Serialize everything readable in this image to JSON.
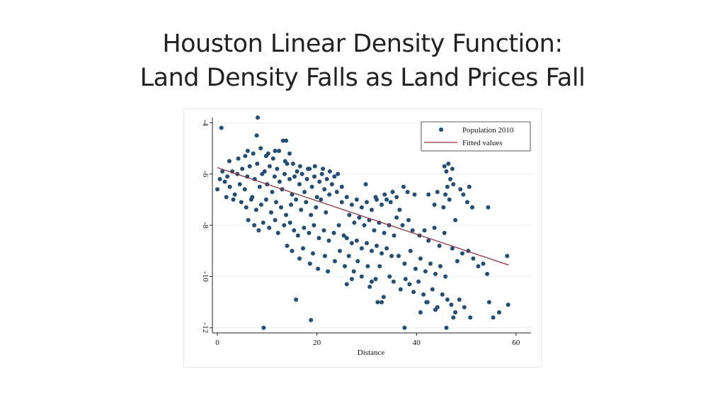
{
  "slide": {
    "title_line1": "Houston Linear Density Function:",
    "title_line2": "Land Density Falls as Land Prices Fall"
  },
  "chart_data": {
    "type": "scatter",
    "title": "",
    "xlabel": "Distance",
    "ylabel": "",
    "xlim": [
      -1,
      63
    ],
    "ylim": [
      -12.2,
      -3.8
    ],
    "xticks": [
      0,
      20,
      40,
      60
    ],
    "yticks": [
      -4,
      -6,
      -8,
      -10,
      -12
    ],
    "grid": "horizontal",
    "legend_position": "top-right",
    "colors": {
      "points": "#1f4e79",
      "fit": "#a0303a",
      "grid": "#e9eef3"
    },
    "series": [
      {
        "name": "Population 2010",
        "type": "scatter",
        "points": [
          [
            0.8,
            -4.2
          ],
          [
            8.1,
            -3.8
          ],
          [
            7.9,
            -4.5
          ],
          [
            13.2,
            -4.7
          ],
          [
            13.8,
            -4.7
          ],
          [
            6.1,
            -5.1
          ],
          [
            11.6,
            -5.1
          ],
          [
            9.8,
            -5.3
          ],
          [
            14.5,
            -5.2
          ],
          [
            0.0,
            -6.6
          ],
          [
            0.5,
            -6.2
          ],
          [
            1.0,
            -5.9
          ],
          [
            1.5,
            -6.3
          ],
          [
            2.0,
            -6.1
          ],
          [
            2.5,
            -6.5
          ],
          [
            3.0,
            -5.9
          ],
          [
            3.5,
            -6.8
          ],
          [
            4.0,
            -6.0
          ],
          [
            4.5,
            -6.4
          ],
          [
            5.0,
            -5.8
          ],
          [
            5.5,
            -6.6
          ],
          [
            6.0,
            -6.1
          ],
          [
            6.5,
            -5.7
          ],
          [
            7.0,
            -6.9
          ],
          [
            7.5,
            -6.2
          ],
          [
            8.0,
            -5.6
          ],
          [
            8.5,
            -6.5
          ],
          [
            9.0,
            -6.0
          ],
          [
            9.5,
            -5.9
          ],
          [
            10.0,
            -6.4
          ],
          [
            10.5,
            -5.7
          ],
          [
            11.0,
            -6.7
          ],
          [
            11.5,
            -6.1
          ],
          [
            12.0,
            -5.8
          ],
          [
            12.5,
            -6.3
          ],
          [
            13.0,
            -6.6
          ],
          [
            13.5,
            -6.0
          ],
          [
            14.0,
            -5.6
          ],
          [
            14.5,
            -6.2
          ],
          [
            15.0,
            -6.8
          ],
          [
            15.5,
            -6.1
          ],
          [
            16.0,
            -5.9
          ],
          [
            16.5,
            -6.4
          ],
          [
            17.0,
            -6.0
          ],
          [
            17.5,
            -6.7
          ],
          [
            18.0,
            -6.2
          ],
          [
            18.5,
            -5.8
          ],
          [
            19.0,
            -6.5
          ],
          [
            19.5,
            -6.1
          ],
          [
            20.0,
            -6.9
          ],
          [
            20.5,
            -6.3
          ],
          [
            21.0,
            -6.0
          ],
          [
            21.5,
            -6.6
          ],
          [
            22.0,
            -6.2
          ],
          [
            22.5,
            -6.8
          ],
          [
            23.0,
            -6.4
          ],
          [
            23.5,
            -6.1
          ],
          [
            24.0,
            -6.7
          ],
          [
            25.0,
            -6.5
          ],
          [
            1.8,
            -6.9
          ],
          [
            3.2,
            -7.0
          ],
          [
            4.8,
            -7.1
          ],
          [
            5.8,
            -7.3
          ],
          [
            6.8,
            -7.0
          ],
          [
            7.8,
            -7.4
          ],
          [
            8.8,
            -7.2
          ],
          [
            9.8,
            -7.0
          ],
          [
            10.8,
            -7.5
          ],
          [
            11.8,
            -7.1
          ],
          [
            12.8,
            -7.3
          ],
          [
            13.8,
            -7.6
          ],
          [
            14.8,
            -7.2
          ],
          [
            15.8,
            -7.0
          ],
          [
            16.8,
            -7.4
          ],
          [
            17.8,
            -7.1
          ],
          [
            18.8,
            -7.6
          ],
          [
            19.8,
            -7.3
          ],
          [
            20.8,
            -7.0
          ],
          [
            21.8,
            -7.5
          ],
          [
            2.4,
            -5.5
          ],
          [
            4.2,
            -5.4
          ],
          [
            5.6,
            -5.3
          ],
          [
            7.2,
            -5.2
          ],
          [
            8.7,
            -5.0
          ],
          [
            10.2,
            -5.2
          ],
          [
            11.2,
            -5.4
          ],
          [
            12.4,
            -5.1
          ],
          [
            13.6,
            -5.5
          ],
          [
            15.2,
            -5.6
          ],
          [
            16.6,
            -5.7
          ],
          [
            18.2,
            -5.8
          ],
          [
            19.6,
            -5.7
          ],
          [
            21.2,
            -5.8
          ],
          [
            22.6,
            -5.9
          ],
          [
            24.2,
            -6.0
          ],
          [
            6.2,
            -7.8
          ],
          [
            7.4,
            -8.0
          ],
          [
            8.3,
            -8.2
          ],
          [
            9.2,
            -7.9
          ],
          [
            10.4,
            -8.1
          ],
          [
            11.6,
            -7.8
          ],
          [
            12.2,
            -8.3
          ],
          [
            13.4,
            -8.0
          ],
          [
            14.6,
            -7.9
          ],
          [
            15.4,
            -8.2
          ],
          [
            16.2,
            -8.4
          ],
          [
            17.4,
            -8.1
          ],
          [
            18.4,
            -8.3
          ],
          [
            19.4,
            -8.0
          ],
          [
            20.4,
            -8.5
          ],
          [
            21.4,
            -8.2
          ],
          [
            22.4,
            -8.6
          ],
          [
            23.4,
            -8.3
          ],
          [
            24.4,
            -8.0
          ],
          [
            25.4,
            -8.4
          ],
          [
            14.0,
            -8.8
          ],
          [
            15.0,
            -9.0
          ],
          [
            16.5,
            -9.3
          ],
          [
            17.2,
            -8.9
          ],
          [
            18.6,
            -9.5
          ],
          [
            19.2,
            -9.1
          ],
          [
            20.2,
            -9.7
          ],
          [
            21.6,
            -9.2
          ],
          [
            22.2,
            -9.8
          ],
          [
            23.6,
            -9.4
          ],
          [
            24.6,
            -9.0
          ],
          [
            25.6,
            -9.6
          ],
          [
            26.4,
            -9.2
          ],
          [
            27.4,
            -9.8
          ],
          [
            28.2,
            -9.4
          ],
          [
            29.0,
            -10.0
          ],
          [
            30.2,
            -9.6
          ],
          [
            31.0,
            -10.2
          ],
          [
            26.0,
            -10.3
          ],
          [
            27.0,
            -10.1
          ],
          [
            25.0,
            -7.1
          ],
          [
            26.0,
            -6.9
          ],
          [
            27.0,
            -7.2
          ],
          [
            28.0,
            -7.0
          ],
          [
            29.0,
            -7.3
          ],
          [
            30.0,
            -7.1
          ],
          [
            31.0,
            -7.4
          ],
          [
            32.0,
            -7.0
          ],
          [
            33.0,
            -7.2
          ],
          [
            34.0,
            -7.0
          ],
          [
            26.5,
            -7.6
          ],
          [
            27.5,
            -7.9
          ],
          [
            28.5,
            -7.7
          ],
          [
            29.5,
            -8.0
          ],
          [
            30.5,
            -7.8
          ],
          [
            31.5,
            -8.2
          ],
          [
            32.5,
            -7.9
          ],
          [
            33.5,
            -8.3
          ],
          [
            34.5,
            -8.0
          ],
          [
            35.5,
            -8.4
          ],
          [
            26.0,
            -8.5
          ],
          [
            27.0,
            -8.7
          ],
          [
            28.0,
            -8.6
          ],
          [
            29.0,
            -8.9
          ],
          [
            30.0,
            -8.7
          ],
          [
            31.0,
            -9.0
          ],
          [
            32.0,
            -8.8
          ],
          [
            33.0,
            -9.1
          ],
          [
            34.0,
            -8.9
          ],
          [
            35.0,
            -9.2
          ],
          [
            29.8,
            -6.4
          ],
          [
            31.8,
            -6.9
          ],
          [
            33.6,
            -6.8
          ],
          [
            35.2,
            -6.7
          ],
          [
            36.0,
            -6.9
          ],
          [
            37.4,
            -6.5
          ],
          [
            38.2,
            -6.7
          ],
          [
            39.6,
            -6.8
          ],
          [
            34.8,
            -7.1
          ],
          [
            36.6,
            -7.4
          ],
          [
            36.0,
            -7.7
          ],
          [
            37.2,
            -8.0
          ],
          [
            38.4,
            -7.8
          ],
          [
            39.2,
            -8.2
          ],
          [
            40.6,
            -8.4
          ],
          [
            41.6,
            -8.2
          ],
          [
            42.4,
            -8.6
          ],
          [
            43.6,
            -8.1
          ],
          [
            44.6,
            -8.8
          ],
          [
            45.6,
            -8.3
          ],
          [
            36.4,
            -9.2
          ],
          [
            37.6,
            -9.5
          ],
          [
            38.8,
            -9.0
          ],
          [
            39.8,
            -9.7
          ],
          [
            40.8,
            -9.3
          ],
          [
            41.8,
            -9.8
          ],
          [
            42.8,
            -9.5
          ],
          [
            43.8,
            -9.9
          ],
          [
            44.8,
            -9.6
          ],
          [
            45.8,
            -10.0
          ],
          [
            35.4,
            -10.2
          ],
          [
            36.8,
            -10.5
          ],
          [
            37.8,
            -10.1
          ],
          [
            38.6,
            -10.3
          ],
          [
            39.4,
            -10.6
          ],
          [
            40.4,
            -10.2
          ],
          [
            41.4,
            -10.7
          ],
          [
            42.2,
            -11.0
          ],
          [
            43.2,
            -10.5
          ],
          [
            44.2,
            -11.2
          ],
          [
            33.4,
            -10.8
          ],
          [
            33.0,
            -11.0
          ],
          [
            40.8,
            -11.4
          ],
          [
            42.0,
            -11.0
          ],
          [
            43.8,
            -11.3
          ],
          [
            45.2,
            -10.7
          ],
          [
            46.2,
            -10.9
          ],
          [
            47.0,
            -11.1
          ],
          [
            47.8,
            -11.4
          ],
          [
            48.6,
            -10.9
          ],
          [
            45.6,
            -5.7
          ],
          [
            46.0,
            -5.9
          ],
          [
            46.4,
            -5.6
          ],
          [
            46.8,
            -6.2
          ],
          [
            47.2,
            -5.8
          ],
          [
            46.2,
            -6.5
          ],
          [
            45.8,
            -6.8
          ],
          [
            47.4,
            -6.4
          ],
          [
            46.6,
            -7.0
          ],
          [
            45.4,
            -7.3
          ],
          [
            47.8,
            -7.8
          ],
          [
            44.2,
            -6.7
          ],
          [
            42.4,
            -6.8
          ],
          [
            43.6,
            -7.2
          ],
          [
            48.8,
            -6.6
          ],
          [
            49.4,
            -6.8
          ],
          [
            50.2,
            -7.1
          ],
          [
            51.2,
            -7.3
          ],
          [
            50.6,
            -6.5
          ],
          [
            54.4,
            -7.3
          ],
          [
            47.2,
            -8.9
          ],
          [
            48.2,
            -9.4
          ],
          [
            49.2,
            -9.1
          ],
          [
            50.4,
            -9.0
          ],
          [
            51.4,
            -9.3
          ],
          [
            52.4,
            -9.6
          ],
          [
            53.4,
            -9.5
          ],
          [
            54.2,
            -9.9
          ],
          [
            58.2,
            -9.2
          ],
          [
            49.6,
            -11.2
          ],
          [
            50.8,
            -11.6
          ],
          [
            54.6,
            -11.0
          ],
          [
            55.4,
            -11.6
          ],
          [
            56.6,
            -11.4
          ],
          [
            58.4,
            -11.1
          ],
          [
            47.4,
            -11.6
          ],
          [
            30.6,
            -10.4
          ],
          [
            31.8,
            -10.1
          ],
          [
            32.6,
            -9.6
          ],
          [
            34.6,
            -10.0
          ],
          [
            9.3,
            -12.0
          ],
          [
            37.6,
            -12.0
          ],
          [
            46.0,
            -12.0
          ],
          [
            18.8,
            -11.7
          ],
          [
            15.8,
            -10.9
          ],
          [
            32.2,
            -11.0
          ]
        ]
      },
      {
        "name": "Fitted values",
        "type": "line",
        "points": [
          [
            0,
            -5.75
          ],
          [
            58.5,
            -9.55
          ]
        ]
      }
    ]
  }
}
